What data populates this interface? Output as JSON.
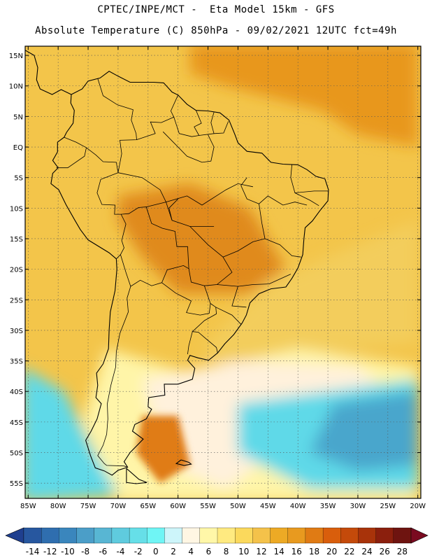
{
  "header": {
    "line1": "CPTEC/INPE/MCT -  Eta Model 15km - GFS",
    "line2": "Absolute Temperature (C) 850hPa - 09/02/2021 12UTC fct=49h"
  },
  "axes": {
    "lat_labels": [
      "15N",
      "10N",
      "5N",
      "EQ",
      "5S",
      "10S",
      "15S",
      "20S",
      "25S",
      "30S",
      "35S",
      "40S",
      "45S",
      "50S",
      "55S"
    ],
    "lat_values": [
      15,
      10,
      5,
      0,
      -5,
      -10,
      -15,
      -20,
      -25,
      -30,
      -35,
      -40,
      -45,
      -50,
      -55
    ],
    "lon_labels": [
      "85W",
      "80W",
      "75W",
      "70W",
      "65W",
      "60W",
      "55W",
      "50W",
      "45W",
      "40W",
      "35W",
      "30W",
      "25W",
      "20W"
    ],
    "lon_values": [
      -85,
      -80,
      -75,
      -70,
      -65,
      -60,
      -55,
      -50,
      -45,
      -40,
      -35,
      -30,
      -25,
      -20
    ],
    "lon_range": [
      -85.5,
      -19.5
    ],
    "lat_range": [
      -57.5,
      16.5
    ]
  },
  "colorbar": {
    "labels": [
      "-14",
      "-12",
      "-10",
      "-8",
      "-6",
      "-4",
      "-2",
      "0",
      "2",
      "4",
      "6",
      "8",
      "10",
      "12",
      "14",
      "16",
      "18",
      "20",
      "22",
      "24",
      "26",
      "28"
    ],
    "colors": [
      "#1f3f8f",
      "#27579f",
      "#2f6eaf",
      "#3a86bd",
      "#4b9ec8",
      "#58b6d3",
      "#5fcbde",
      "#66dfe8",
      "#6ff5f5",
      "#cdf5fa",
      "#fff6e3",
      "#fff7a8",
      "#ffea80",
      "#fbd95c",
      "#f4c24a",
      "#edaa25",
      "#e89a1f",
      "#e07b14",
      "#d95e0c",
      "#c44a0a",
      "#a8330a",
      "#8b1f0d",
      "#6e1410",
      "#7a0a20"
    ]
  },
  "map": {
    "background_color": "#f3c54a",
    "regions": [
      {
        "name": "north-atlantic-warm",
        "color": "#e8971f"
      },
      {
        "name": "brazil-interior-hot",
        "color": "#e08a1e"
      },
      {
        "name": "subtropical-atlantic",
        "color": "#f3cd5c"
      },
      {
        "name": "midlatitude-pale",
        "color": "#fff5a8"
      },
      {
        "name": "southern-cream",
        "color": "#fff1dc"
      },
      {
        "name": "southern-cold-pacific",
        "color": "#5fd9e8"
      },
      {
        "name": "southern-cold-atlantic",
        "color": "#5fd9e8"
      },
      {
        "name": "cold-core",
        "color": "#4aa6cc"
      },
      {
        "name": "patagonia-warm",
        "color": "#e07b14"
      }
    ]
  }
}
